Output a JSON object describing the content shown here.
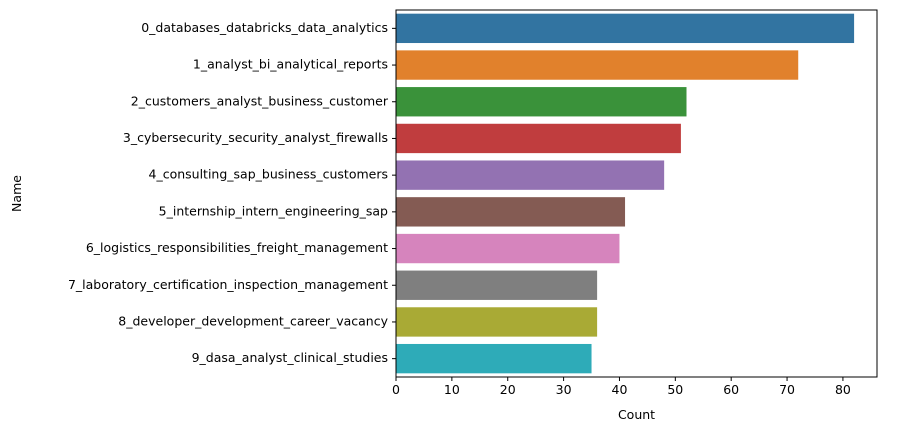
{
  "chart_data": {
    "type": "bar",
    "orientation": "horizontal",
    "categories": [
      "0_databases_databricks_data_analytics",
      "1_analyst_bi_analytical_reports",
      "2_customers_analyst_business_customer",
      "3_cybersecurity_security_analyst_firewalls",
      "4_consulting_sap_business_customers",
      "5_internship_intern_engineering_sap",
      "6_logistics_responsibilities_freight_management",
      "7_laboratory_certification_inspection_management",
      "8_developer_development_career_vacancy",
      "9_dasa_analyst_clinical_studies"
    ],
    "values": [
      82,
      72,
      52,
      51,
      48,
      41,
      40,
      36,
      36,
      35
    ],
    "colors": [
      "#3274a1",
      "#e1812c",
      "#3a923a",
      "#c03d3e",
      "#9372b2",
      "#845b53",
      "#d684bd",
      "#7f7f7f",
      "#a9aa35",
      "#2eabb8"
    ],
    "xlabel": "Count",
    "ylabel": "Name",
    "xlim": [
      0,
      86.1
    ],
    "xticks": [
      "0",
      "10",
      "20",
      "30",
      "40",
      "50",
      "60",
      "70",
      "80"
    ],
    "grid": false,
    "legend": "none"
  }
}
